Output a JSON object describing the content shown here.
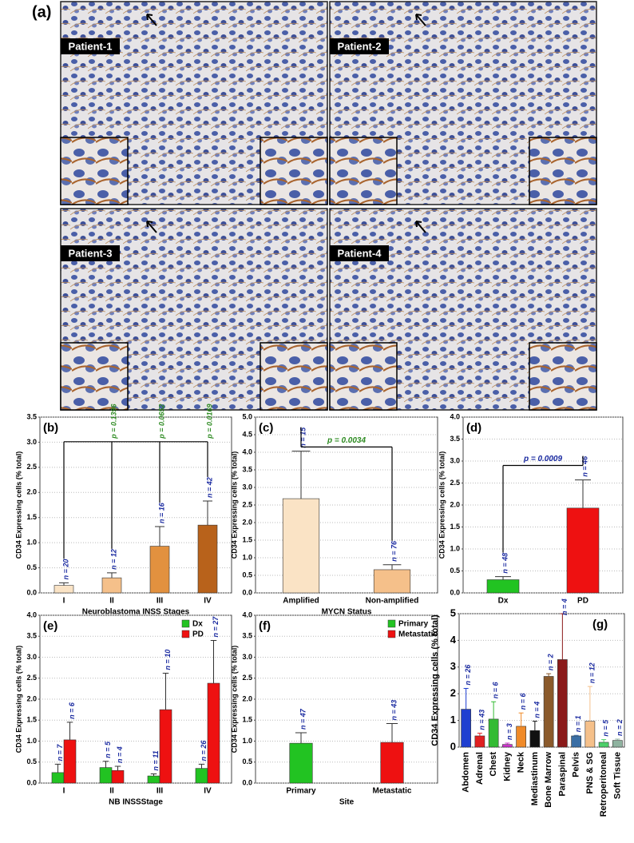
{
  "panel_a": {
    "label": "(a)",
    "patients": [
      "Patient-1",
      "Patient-2",
      "Patient-3",
      "Patient-4"
    ]
  },
  "chart_data": [
    {
      "type": "bar",
      "panel_label": "(b)",
      "ylabel": "CD34 Expressing cells (% total)",
      "xlabel": "Neuroblastoma INSS Stages",
      "categories": [
        "I",
        "II",
        "III",
        "IV"
      ],
      "series": [
        {
          "colors": [
            "#fae3c5",
            "#f5c08a",
            "#e2913f",
            "#b8621b"
          ],
          "values": [
            0.15,
            0.3,
            0.93,
            1.35
          ],
          "errors": [
            0.05,
            0.1,
            0.39,
            0.48
          ],
          "n_labels": [
            "n = 20",
            "n = 12",
            "n = 16",
            "n = 42"
          ]
        }
      ],
      "p_values": [
        null,
        "p = 0.1396",
        "p = 0.0652",
        "p = 0.0169"
      ],
      "p_color": "#2e8b22",
      "ylim": [
        0,
        3.5
      ],
      "yticks": [
        {
          "value": 0,
          "label": "0.0"
        },
        {
          "value": 0.5,
          "label": "0.5"
        },
        {
          "value": 1,
          "label": "1.0"
        },
        {
          "value": 1.5,
          "label": "1.5"
        },
        {
          "value": 2,
          "label": "2.0"
        },
        {
          "value": 2.5,
          "label": "2.5"
        },
        {
          "value": 3,
          "label": "3.0"
        },
        {
          "value": 3.5,
          "label": "3.5"
        }
      ],
      "grid": true
    },
    {
      "type": "bar",
      "panel_label": "(c)",
      "ylabel": "CD34 Expressing cells (% total)",
      "xlabel": "MYCN Status",
      "categories": [
        "Amplified",
        "Non-amplified"
      ],
      "series": [
        {
          "colors": [
            "#fae3c5",
            "#f5c08a"
          ],
          "values": [
            2.68,
            0.66
          ],
          "errors": [
            1.35,
            0.14
          ],
          "n_labels": [
            "n = 15",
            "n = 76"
          ]
        }
      ],
      "p_value": "p = 0.0034",
      "p_color": "#2e8b22",
      "ylim": [
        0,
        5
      ],
      "yticks": [
        {
          "value": 0,
          "label": "0.0"
        },
        {
          "value": 0.5,
          "label": "0.5"
        },
        {
          "value": 1,
          "label": "1.0"
        },
        {
          "value": 1.5,
          "label": "1.5"
        },
        {
          "value": 2,
          "label": "2.0"
        },
        {
          "value": 2.5,
          "label": "2.5"
        },
        {
          "value": 3,
          "label": "3.0"
        },
        {
          "value": 3.5,
          "label": "3.5"
        },
        {
          "value": 4,
          "label": "4.0"
        },
        {
          "value": 4.5,
          "label": "4.5"
        },
        {
          "value": 5,
          "label": "5.0"
        }
      ],
      "grid": true
    },
    {
      "type": "bar",
      "panel_label": "(d)",
      "ylabel": "CD34 Expressing cells (% total)",
      "categories": [
        "Dx",
        "PD"
      ],
      "series": [
        {
          "colors": [
            "#22c322",
            "#ee1111"
          ],
          "values": [
            0.3,
            1.93
          ],
          "errors": [
            0.07,
            0.64
          ],
          "n_labels": [
            "n = 48",
            "n = 46"
          ]
        }
      ],
      "p_value": "p = 0.0009",
      "p_color": "#1a2aa0",
      "ylim": [
        0,
        4
      ],
      "yticks": [
        {
          "value": 0,
          "label": "0.0"
        },
        {
          "value": 0.5,
          "label": "0.5"
        },
        {
          "value": 1,
          "label": "1.0"
        },
        {
          "value": 1.5,
          "label": "1.5"
        },
        {
          "value": 2,
          "label": "2.0"
        },
        {
          "value": 2.5,
          "label": "2.5"
        },
        {
          "value": 3,
          "label": "3.0"
        },
        {
          "value": 3.5,
          "label": "3.5"
        },
        {
          "value": 4,
          "label": "4.0"
        }
      ],
      "grid": true
    },
    {
      "type": "bar",
      "panel_label": "(e)",
      "ylabel": "CD34 Expressing cells (% total)",
      "xlabel": "NB INSSStage",
      "categories": [
        "I",
        "II",
        "III",
        "IV"
      ],
      "legend": "upper right",
      "series": [
        {
          "name": "Dx",
          "color": "#22c322",
          "values": [
            0.25,
            0.37,
            0.17,
            0.35
          ],
          "errors": [
            0.2,
            0.15,
            0.05,
            0.1
          ],
          "n_labels": [
            "n = 7",
            "n = 5",
            "n = 11",
            "n = 26"
          ]
        },
        {
          "name": "PD",
          "color": "#ee1111",
          "values": [
            1.03,
            0.3,
            1.75,
            2.38
          ],
          "errors": [
            0.42,
            0.1,
            0.87,
            1.02
          ],
          "n_labels": [
            "n = 6",
            "n = 4",
            "n = 10",
            "n = 27"
          ]
        }
      ],
      "ylim": [
        0,
        4
      ],
      "yticks": [
        {
          "value": 0,
          "label": "0.0"
        },
        {
          "value": 0.5,
          "label": "0.5"
        },
        {
          "value": 1,
          "label": "1.0"
        },
        {
          "value": 1.5,
          "label": "1.5"
        },
        {
          "value": 2,
          "label": "2.0"
        },
        {
          "value": 2.5,
          "label": "2.5"
        },
        {
          "value": 3,
          "label": "3.0"
        },
        {
          "value": 3.5,
          "label": "3.5"
        },
        {
          "value": 4,
          "label": "4.0"
        }
      ],
      "grid": true
    },
    {
      "type": "bar",
      "panel_label": "(f)",
      "ylabel": "CD34 Expressing cells (% total)",
      "xlabel": "Site",
      "categories": [
        "Primary",
        "Metastatic"
      ],
      "legend": "upper right",
      "series": [
        {
          "name": "Primary",
          "color": "#22c322",
          "values": [
            0.95,
            null
          ],
          "errors": [
            0.25,
            null
          ],
          "n_labels": [
            "n = 47",
            null
          ]
        },
        {
          "name": "Metastatic",
          "color": "#ee1111",
          "values": [
            null,
            0.97
          ],
          "errors": [
            null,
            0.45
          ],
          "n_labels": [
            null,
            "n = 43"
          ]
        }
      ],
      "ylim": [
        0,
        4
      ],
      "yticks": [
        {
          "value": 0,
          "label": "0.0"
        },
        {
          "value": 0.5,
          "label": "0.5"
        },
        {
          "value": 1,
          "label": "1.0"
        },
        {
          "value": 1.5,
          "label": "1.5"
        },
        {
          "value": 2,
          "label": "2.0"
        },
        {
          "value": 2.5,
          "label": "2.5"
        },
        {
          "value": 3,
          "label": "3.0"
        },
        {
          "value": 3.5,
          "label": "3.5"
        },
        {
          "value": 4,
          "label": "4.0"
        }
      ],
      "grid": true
    },
    {
      "type": "bar",
      "panel_label": "(g)",
      "ylabel": "CD34 Expressing cells (% total)",
      "categories": [
        "Abdomen",
        "Adrenal",
        "Chest",
        "Kidney",
        "Neck",
        "Mediastinum",
        "Bone Marrow",
        "Paraspinal",
        "Pelvis",
        "PNS & SG",
        "Retroperitoneal",
        "Soft Tissue"
      ],
      "series": [
        {
          "colors": [
            "#1f3fd0",
            "#e02020",
            "#33bb33",
            "#cc33cc",
            "#f08a28",
            "#111111",
            "#8b5a2b",
            "#8b1a1a",
            "#3a6ea5",
            "#f5c08a",
            "#4ccf6a",
            "#8fb3a0"
          ],
          "values": [
            1.42,
            0.42,
            1.05,
            0.1,
            0.78,
            0.62,
            2.65,
            3.28,
            0.42,
            0.97,
            0.18,
            0.25
          ],
          "errors": [
            0.78,
            0.1,
            0.65,
            0.05,
            0.5,
            0.35,
            0.1,
            1.72,
            0.02,
            1.3,
            0.1,
            0.05
          ],
          "n_labels": [
            "n = 26",
            "n = 43",
            "n = 6",
            "n = 3",
            "n = 6",
            "n = 4",
            "n = 2",
            "n = 4",
            "n = 1",
            "n = 12",
            "n = 5",
            "n = 2"
          ]
        }
      ],
      "ylim": [
        0,
        5
      ],
      "yticks": [
        0,
        1,
        2,
        3,
        4,
        5
      ],
      "grid": true
    }
  ]
}
